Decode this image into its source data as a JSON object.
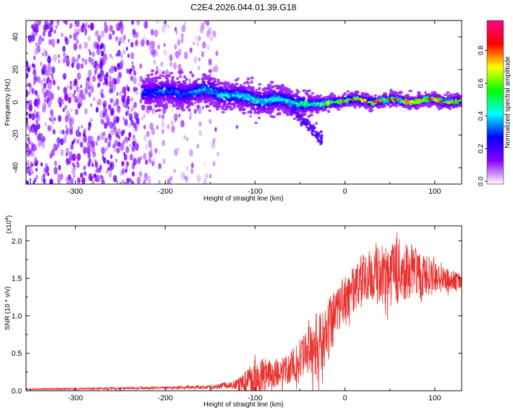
{
  "title": "C2E4.2026.044.01.39.G18",
  "colors": {
    "snr_line": "#e8302c",
    "axis": "#000000",
    "background": "#ffffff"
  },
  "chart_data": [
    {
      "type": "heatmap",
      "title": "C2E4.2026.044.01.39.G18",
      "xlabel": "Height of straight line (km)",
      "ylabel": "Frequency (Hz)",
      "xlim": [
        -355,
        130
      ],
      "ylim": [
        -50,
        50
      ],
      "x_ticks": [
        -300,
        -200,
        -100,
        0,
        100
      ],
      "y_ticks": [
        -40,
        -20,
        0,
        20,
        40
      ],
      "x_tick_labels": [
        "-300",
        "-200",
        "-100",
        "0",
        "100"
      ],
      "y_tick_labels": [
        "-40",
        "-20",
        "0",
        "20",
        "40"
      ],
      "colorbar": {
        "label": "Normalized spectral amplitude",
        "range": [
          0,
          1
        ],
        "ticks": [
          0.0,
          0.2,
          0.4,
          0.6,
          0.8
        ],
        "tick_labels": [
          "0.0",
          "0.2",
          "0.4",
          "0.6",
          "0.8"
        ],
        "colors": [
          "#ffffff",
          "#8800ff",
          "#0000ff",
          "#00ffff",
          "#00ff00",
          "#ffff00",
          "#ff0000",
          "#ff0088"
        ]
      },
      "signal_track": [
        {
          "x": -225,
          "f": 7,
          "width": 10,
          "amp": 0.25
        },
        {
          "x": -200,
          "f": 6,
          "width": 10,
          "amp": 0.3
        },
        {
          "x": -175,
          "f": 6,
          "width": 10,
          "amp": 0.3
        },
        {
          "x": -150,
          "f": 7,
          "width": 10,
          "amp": 0.35
        },
        {
          "x": -125,
          "f": 4,
          "width": 9,
          "amp": 0.4
        },
        {
          "x": -100,
          "f": 2,
          "width": 9,
          "amp": 0.45
        },
        {
          "x": -75,
          "f": 1,
          "width": 9,
          "amp": 0.45
        },
        {
          "x": -50,
          "f": 0,
          "width": 8,
          "amp": 0.45
        },
        {
          "x": -35,
          "f": -2,
          "width": 6,
          "amp": 0.5
        },
        {
          "x": -25,
          "f": -2,
          "width": 5,
          "amp": 0.6
        },
        {
          "x": -15,
          "f": 1,
          "width": 4,
          "amp": 0.7
        },
        {
          "x": 0,
          "f": 1,
          "width": 4,
          "amp": 0.8
        },
        {
          "x": 25,
          "f": 1,
          "width": 4,
          "amp": 0.85
        },
        {
          "x": 50,
          "f": 1,
          "width": 4,
          "amp": 0.85
        },
        {
          "x": 75,
          "f": 1,
          "width": 4,
          "amp": 0.85
        },
        {
          "x": 100,
          "f": 1,
          "width": 4,
          "amp": 0.85
        },
        {
          "x": 125,
          "f": 1,
          "width": 4,
          "amp": 0.85
        }
      ]
    },
    {
      "type": "line",
      "xlabel": "Height of straight line (km)",
      "ylabel": "SNR (10 * v/v)",
      "y_multiplier": "(x10",
      "y_multiplier_exp": "4",
      "xlim": [
        -355,
        130
      ],
      "ylim": [
        0,
        2.2
      ],
      "x_ticks": [
        -300,
        -200,
        -100,
        0,
        100
      ],
      "y_ticks": [
        0.0,
        0.5,
        1.0,
        1.5,
        2.0
      ],
      "x_tick_labels": [
        "-300",
        "-200",
        "-100",
        "0",
        "100"
      ],
      "y_tick_labels": [
        "0.0",
        "0.5",
        "1.0",
        "1.5",
        "2.0"
      ],
      "series": [
        {
          "color": "#e8302c",
          "mean": {
            "x": [
              -355,
              -250,
              -200,
              -150,
              -120,
              -100,
              -80,
              -60,
              -50,
              -40,
              -30,
              -20,
              -10,
              0,
              10,
              20,
              30,
              40,
              50,
              60,
              70,
              80,
              90,
              100,
              110,
              120,
              130
            ],
            "y": [
              0.02,
              0.03,
              0.04,
              0.05,
              0.08,
              0.15,
              0.2,
              0.3,
              0.4,
              0.5,
              0.6,
              0.75,
              1.0,
              1.2,
              1.35,
              1.45,
              1.5,
              1.55,
              1.6,
              1.6,
              1.58,
              1.55,
              1.52,
              1.5,
              1.48,
              1.47,
              1.45
            ]
          },
          "envelope": {
            "x": [
              -355,
              -250,
              -200,
              -150,
              -120,
              -100,
              -80,
              -60,
              -50,
              -40,
              -30,
              -20,
              -10,
              0,
              10,
              20,
              30,
              40,
              50,
              60,
              70,
              80,
              90,
              100,
              110,
              120,
              130
            ],
            "y": [
              0.03,
              0.05,
              0.06,
              0.08,
              0.15,
              0.5,
              0.4,
              0.55,
              0.75,
              0.95,
              1.1,
              1.25,
              1.4,
              1.55,
              1.7,
              1.85,
              1.95,
              2.05,
              2.12,
              2.15,
              2.05,
              1.95,
              1.85,
              1.78,
              1.7,
              1.65,
              1.55
            ]
          }
        }
      ]
    }
  ]
}
